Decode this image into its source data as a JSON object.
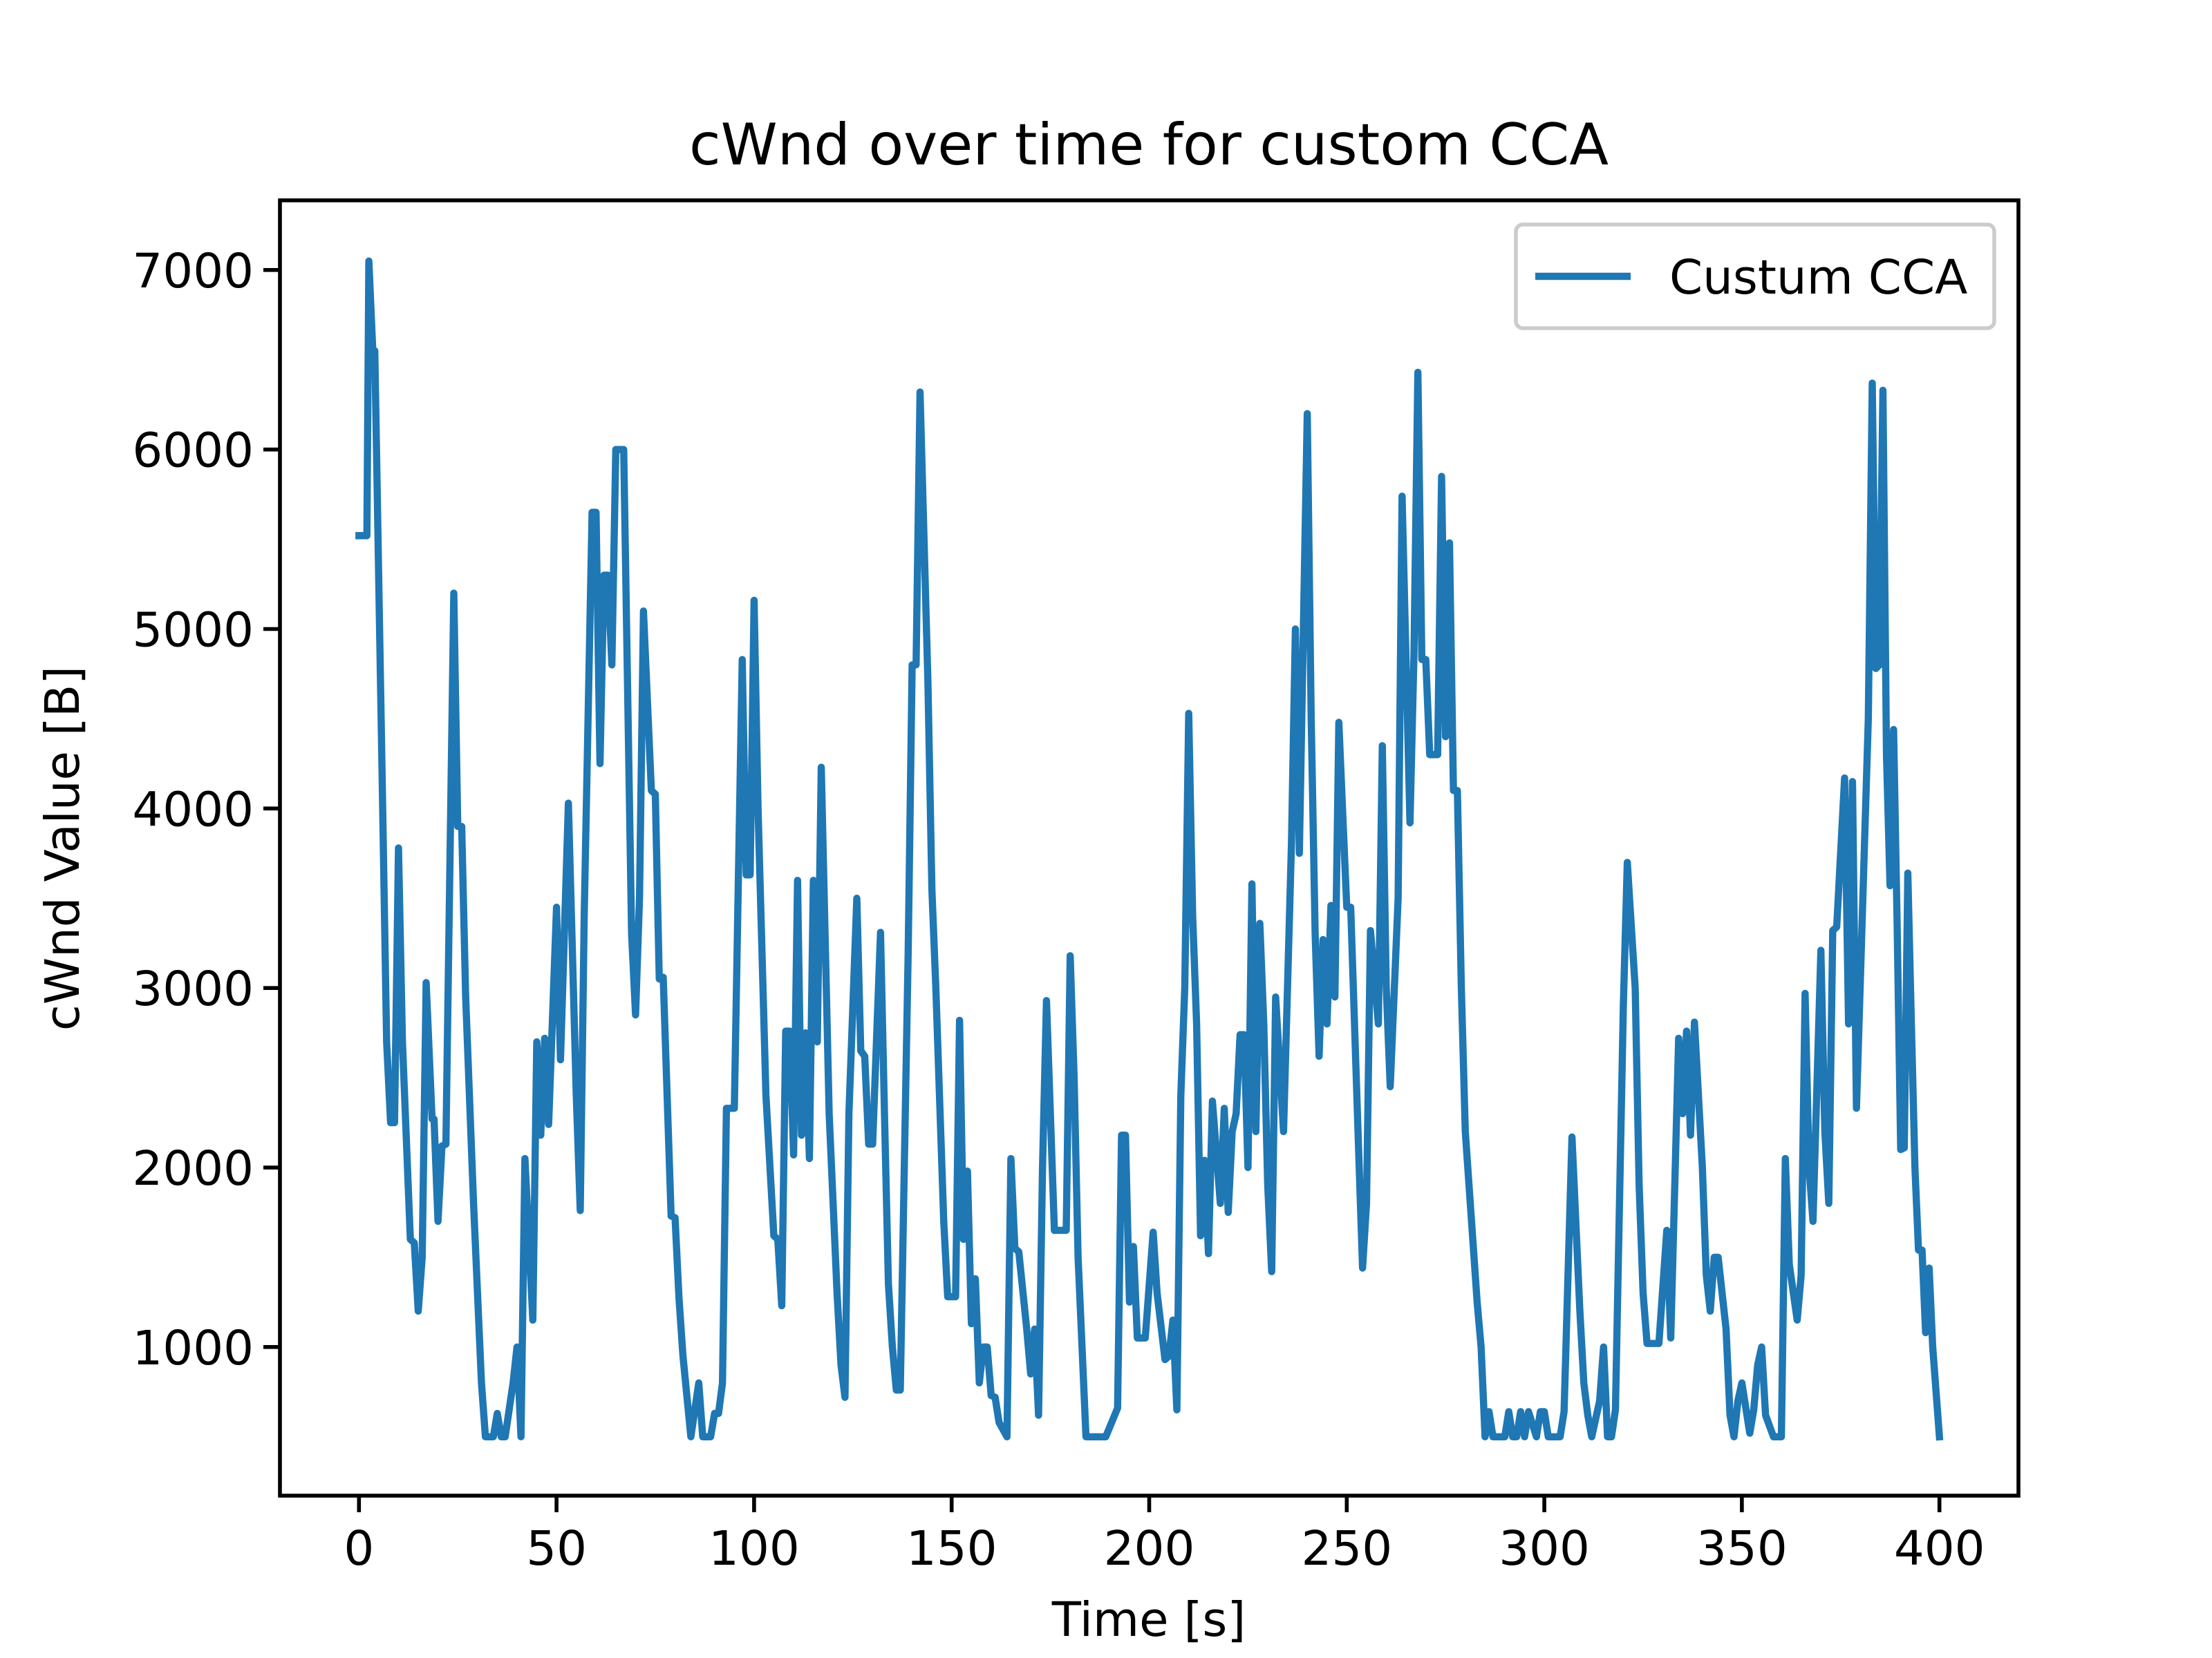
{
  "chart_data": {
    "type": "line",
    "title": "cWnd over time for custom CCA",
    "x_label": "Time [s]",
    "y_label": "cWnd Value [B]",
    "x": [
      0,
      2,
      2.5,
      3.5,
      4,
      6,
      7,
      8,
      9,
      10,
      11,
      13,
      14,
      15,
      16,
      17,
      18.5,
      19,
      20,
      21,
      22,
      24,
      25,
      26,
      27,
      29,
      31,
      32,
      34,
      35,
      36,
      37,
      39,
      40,
      41,
      42,
      44,
      45,
      46,
      47,
      48,
      50,
      51,
      53,
      55,
      56,
      57,
      59,
      60,
      61,
      62,
      63,
      64,
      65,
      67,
      69,
      70,
      71,
      72,
      74,
      75,
      76,
      77,
      79,
      80,
      81,
      82,
      84,
      86,
      87,
      89,
      90,
      91,
      92,
      93,
      95,
      97,
      98,
      99,
      100,
      101,
      103,
      105,
      106,
      107,
      108,
      109,
      110,
      111,
      112,
      113,
      114,
      115,
      116,
      117,
      119,
      121,
      122,
      123,
      124,
      126,
      127,
      128,
      129,
      130,
      132,
      133,
      134,
      135,
      136,
      137,
      139,
      140,
      141,
      142,
      144,
      145,
      146,
      148,
      149,
      151,
      152,
      153,
      154,
      155,
      156,
      157,
      158,
      159,
      160,
      161,
      162,
      164,
      165,
      166,
      167,
      169,
      170,
      171,
      172,
      173,
      174,
      176,
      179,
      180,
      181,
      182,
      183,
      184,
      189,
      192,
      193,
      194,
      195,
      196,
      197,
      199,
      201,
      202,
      204,
      205,
      206,
      207,
      208,
      209,
      210,
      211,
      212,
      213,
      214,
      215,
      216,
      218,
      219,
      220,
      221,
      222,
      223,
      224,
      225,
      226,
      227,
      228,
      229,
      230,
      231,
      232,
      234,
      236,
      237,
      238,
      240,
      241,
      242,
      243,
      244,
      245,
      246,
      247,
      248,
      249,
      250,
      251,
      253,
      254,
      255,
      256,
      258,
      259,
      260,
      261,
      263,
      264,
      266,
      267,
      268,
      269,
      270,
      271,
      273,
      274,
      275,
      276,
      277,
      278,
      279,
      280,
      283,
      284,
      285,
      286,
      287,
      290,
      291,
      292,
      293,
      294,
      295,
      296,
      298,
      299,
      300,
      301,
      303,
      304,
      305,
      307,
      309,
      310,
      311,
      312,
      314,
      315,
      316,
      317,
      318,
      320,
      321,
      323,
      324,
      325,
      326,
      329,
      331,
      332,
      334,
      335,
      336,
      337,
      338,
      340,
      341,
      342,
      343,
      344,
      346,
      347,
      348,
      349,
      350,
      352,
      353,
      354,
      355,
      356,
      358,
      360,
      361,
      362,
      364,
      365,
      366,
      367,
      368,
      370,
      371,
      372,
      373,
      374,
      376,
      377,
      378,
      379,
      382,
      383,
      383.9,
      384.8,
      385.7,
      386.6,
      387.5,
      388.4,
      389.3,
      390.2,
      391.1,
      392,
      392.9,
      393.8,
      394.7,
      395.6,
      396.5,
      397.4,
      398.3,
      400
    ],
    "series": [
      {
        "name": "Custum CCA",
        "color": "#1f77b4",
        "values": [
          5520,
          5520,
          7050,
          6550,
          6550,
          4000,
          2700,
          2250,
          2250,
          3780,
          2700,
          1600,
          1580,
          1200,
          1500,
          3030,
          2270,
          2270,
          1700,
          2120,
          2130,
          5200,
          3900,
          3900,
          2950,
          1800,
          800,
          500,
          500,
          630,
          500,
          500,
          800,
          1000,
          500,
          2050,
          1150,
          2700,
          2180,
          2720,
          2240,
          3450,
          2600,
          4030,
          2400,
          1760,
          3400,
          5650,
          5650,
          4250,
          5300,
          5300,
          4800,
          6000,
          6000,
          3300,
          2850,
          3500,
          5100,
          4100,
          4080,
          3050,
          3060,
          1730,
          1720,
          1270,
          950,
          500,
          800,
          500,
          500,
          630,
          630,
          800,
          2330,
          2330,
          4830,
          3630,
          3630,
          5160,
          4000,
          2400,
          1620,
          1600,
          1230,
          2760,
          2760,
          2070,
          3600,
          2180,
          2750,
          2050,
          3600,
          2700,
          4230,
          2300,
          1300,
          900,
          720,
          2300,
          3500,
          2650,
          2620,
          2130,
          2130,
          3310,
          2300,
          1350,
          1000,
          760,
          760,
          3200,
          4800,
          4800,
          6320,
          4700,
          3550,
          3000,
          1700,
          1280,
          1280,
          2820,
          1600,
          1980,
          1130,
          1380,
          800,
          1000,
          1000,
          730,
          720,
          580,
          500,
          2050,
          1550,
          1530,
          1100,
          850,
          1100,
          620,
          2000,
          2930,
          1650,
          1650,
          3180,
          2500,
          1500,
          1000,
          500,
          500,
          660,
          2180,
          2180,
          1250,
          1560,
          1050,
          1050,
          1640,
          1300,
          930,
          950,
          1150,
          650,
          2400,
          3000,
          4530,
          3400,
          2800,
          1620,
          2040,
          1520,
          2370,
          1800,
          2330,
          1750,
          2200,
          2300,
          2740,
          2740,
          2000,
          3580,
          2200,
          3360,
          2800,
          1900,
          1420,
          2950,
          2200,
          3800,
          5000,
          3750,
          6200,
          4500,
          3300,
          2620,
          3270,
          2800,
          3460,
          2950,
          4480,
          3960,
          3450,
          3450,
          2100,
          1440,
          1800,
          3320,
          2800,
          4350,
          3000,
          2450,
          3500,
          5740,
          3920,
          4850,
          6430,
          4830,
          4830,
          4300,
          4300,
          5850,
          4400,
          5480,
          4100,
          4100,
          3000,
          2200,
          1250,
          1000,
          500,
          640,
          500,
          500,
          640,
          500,
          500,
          640,
          500,
          640,
          500,
          640,
          640,
          500,
          500,
          500,
          640,
          2170,
          1200,
          800,
          620,
          500,
          700,
          1000,
          500,
          500,
          650,
          2900,
          3700,
          3000,
          1900,
          1300,
          1020,
          1020,
          1650,
          1050,
          2720,
          2300,
          2760,
          2180,
          2810,
          2000,
          1400,
          1200,
          1500,
          1500,
          1100,
          620,
          500,
          700,
          800,
          520,
          650,
          900,
          1000,
          620,
          500,
          500,
          2050,
          1460,
          1150,
          1400,
          2970,
          2000,
          1700,
          3210,
          2200,
          1800,
          3320,
          3340,
          4170,
          2800,
          4150,
          2330,
          4500,
          6370,
          4780,
          4800,
          6330,
          4300,
          3570,
          4440,
          3350,
          2100,
          2110,
          3640,
          2800,
          2000,
          1540,
          1540,
          1080,
          1440,
          1000,
          500
        ]
      }
    ],
    "xlim": [
      -20,
      420
    ],
    "ylim": [
      172,
      7388
    ],
    "xticks": [
      0,
      50,
      100,
      150,
      200,
      250,
      300,
      350,
      400
    ],
    "yticks": [
      1000,
      2000,
      3000,
      4000,
      5000,
      6000,
      7000
    ],
    "legend": "upper right",
    "grid": false
  }
}
